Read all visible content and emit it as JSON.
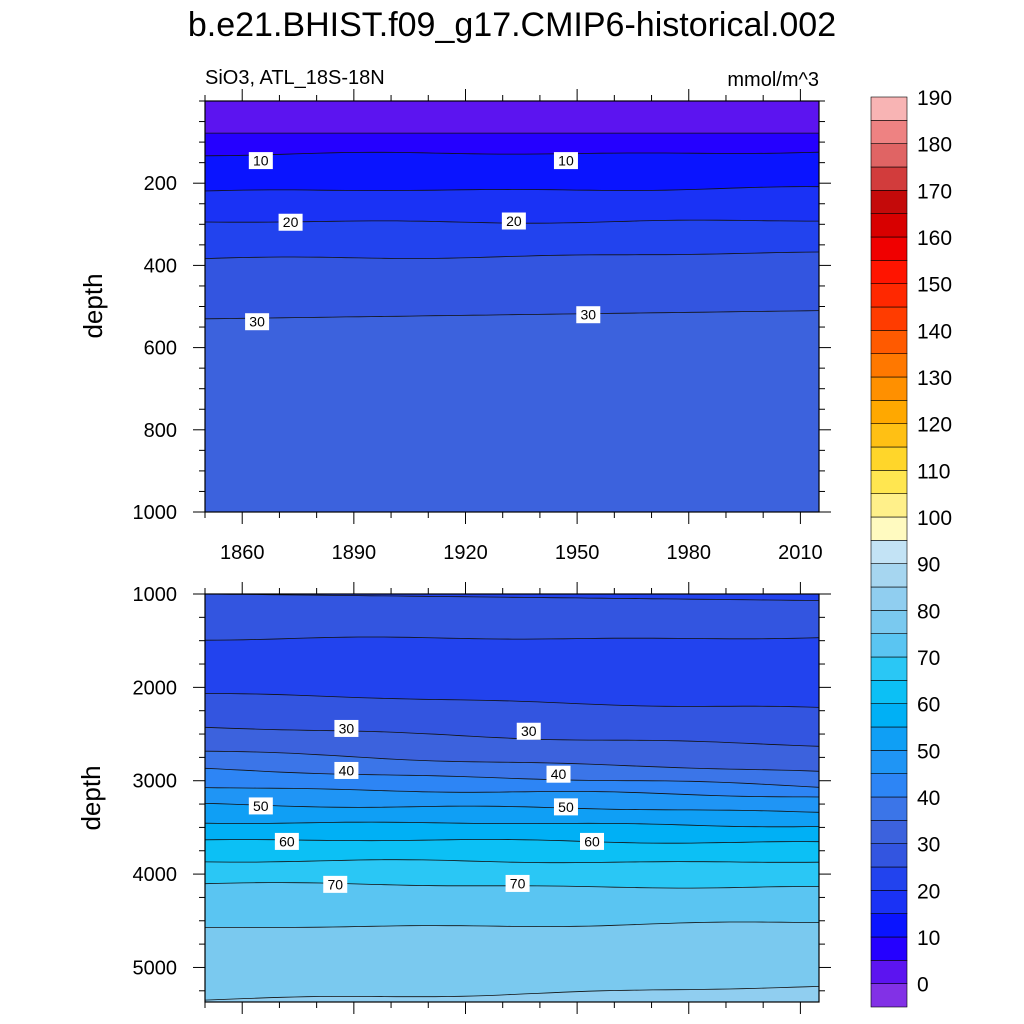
{
  "chart_data": {
    "title": "b.e21.BHIST.f09_g17.CMIP6-historical.002",
    "left_string": "SiO3, ATL_18S-18N",
    "units": "mmol/m^3",
    "ylabel": "depth",
    "colorbar": {
      "min": -5,
      "step": 5,
      "labels": [
        "0",
        "10",
        "20",
        "30",
        "40",
        "50",
        "60",
        "70",
        "80",
        "90",
        "100",
        "110",
        "120",
        "130",
        "140",
        "150",
        "160",
        "170",
        "180",
        "190"
      ],
      "colors": [
        "#8231e6",
        "#5c14f0",
        "#2500ff",
        "#0a14ff",
        "#1a32f5",
        "#2243ee",
        "#3355e0",
        "#3c62dd",
        "#3b75e8",
        "#2d85f5",
        "#1f95f5",
        "#0f9ff5",
        "#00b0f5",
        "#0cc0f5",
        "#2ac7f5",
        "#5ac5f2",
        "#7ac9ef",
        "#90cef0",
        "#a6d6f0",
        "#c3e3f5",
        "#fffac0",
        "#fff08a",
        "#ffe650",
        "#ffd62a",
        "#ffc014",
        "#ffa800",
        "#ff9000",
        "#ff7800",
        "#ff5a00",
        "#ff3c00",
        "#ff2800",
        "#ff1400",
        "#f00000",
        "#d80000",
        "#c40a0a",
        "#d23c3c",
        "#e06464",
        "#ee8282",
        "#f8b4b4"
      ]
    },
    "panels": [
      {
        "id": "upper",
        "type": "contourf",
        "x_ticks": [
          1860,
          1890,
          1920,
          1950,
          1980,
          2010
        ],
        "x_range": [
          1850,
          2015
        ],
        "y_ticks": [
          200,
          400,
          600,
          800,
          1000
        ],
        "y_range": [
          0,
          1000
        ],
        "y_reversed": true,
        "contour_levels": [
          5,
          10,
          15,
          20,
          25,
          30
        ],
        "contour_depths_1850": [
          78,
          130,
          220,
          295,
          385,
          530
        ],
        "contour_depths_2015": [
          78,
          125,
          212,
          292,
          370,
          510
        ],
        "labels": [
          {
            "text": "10",
            "x": 1865,
            "y": 145
          },
          {
            "text": "10",
            "x": 1947,
            "y": 145
          },
          {
            "text": "20",
            "x": 1873,
            "y": 295
          },
          {
            "text": "20",
            "x": 1933,
            "y": 292
          },
          {
            "text": "30",
            "x": 1864,
            "y": 537
          },
          {
            "text": "30",
            "x": 1953,
            "y": 520
          }
        ]
      },
      {
        "id": "lower",
        "type": "contourf",
        "x_ticks": [
          1860,
          1890,
          1920,
          1950,
          1980,
          2010
        ],
        "x_range": [
          1850,
          2015
        ],
        "y_ticks": [
          1000,
          2000,
          3000,
          4000,
          5000
        ],
        "y_range": [
          1000,
          5370
        ],
        "y_reversed": true,
        "contour_levels": [
          25,
          20,
          25,
          30,
          35,
          40,
          45,
          50,
          55,
          60,
          65,
          70,
          75,
          80,
          85
        ],
        "contour_depths_1850": [
          1000,
          1480,
          2070,
          2430,
          2690,
          2880,
          3070,
          3250,
          3440,
          3630,
          3860,
          4100,
          4580,
          5350,
          5370
        ],
        "contour_depths_2015": [
          1070,
          1470,
          2230,
          2630,
          2910,
          3060,
          3170,
          3330,
          3480,
          3660,
          3870,
          4150,
          4520,
          5210,
          5370
        ],
        "labels": [
          {
            "text": "30",
            "x": 1888,
            "y": 2440
          },
          {
            "text": "30",
            "x": 1937,
            "y": 2470
          },
          {
            "text": "40",
            "x": 1888,
            "y": 2890
          },
          {
            "text": "40",
            "x": 1945,
            "y": 2930
          },
          {
            "text": "50",
            "x": 1865,
            "y": 3270
          },
          {
            "text": "50",
            "x": 1947,
            "y": 3280
          },
          {
            "text": "60",
            "x": 1872,
            "y": 3650
          },
          {
            "text": "60",
            "x": 1954,
            "y": 3650
          },
          {
            "text": "70",
            "x": 1885,
            "y": 4110
          },
          {
            "text": "70",
            "x": 1934,
            "y": 4100
          }
        ]
      }
    ]
  }
}
